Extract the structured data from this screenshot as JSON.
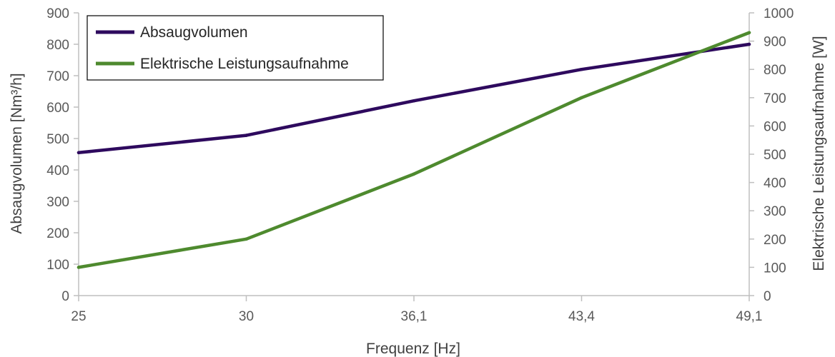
{
  "chart_data": {
    "type": "line",
    "title": "",
    "categories": [
      "25",
      "30",
      "36,1",
      "43,4",
      "49,1"
    ],
    "xlabel": "Frequenz [Hz]",
    "ylabel_left": "Absaugvolumen [Nm³/h]",
    "ylabel_right": "Elektrische Leistungsaufnahme [W]",
    "ylim_left": [
      0,
      900
    ],
    "ylim_right": [
      0,
      1000
    ],
    "yticks_left": [
      0,
      100,
      200,
      300,
      400,
      500,
      600,
      700,
      800,
      900
    ],
    "yticks_right": [
      0,
      100,
      200,
      300,
      400,
      500,
      600,
      700,
      800,
      900,
      1000
    ],
    "grid": false,
    "legend_position": "top-left",
    "series": [
      {
        "name": "Absaugvolumen",
        "axis": "left",
        "color": "#2e0a5e",
        "values": [
          455,
          510,
          620,
          720,
          800
        ]
      },
      {
        "name": "Elektrische Leistungsaufnahme",
        "axis": "right",
        "color": "#4e8a2e",
        "values": [
          100,
          200,
          430,
          700,
          930
        ]
      }
    ]
  }
}
